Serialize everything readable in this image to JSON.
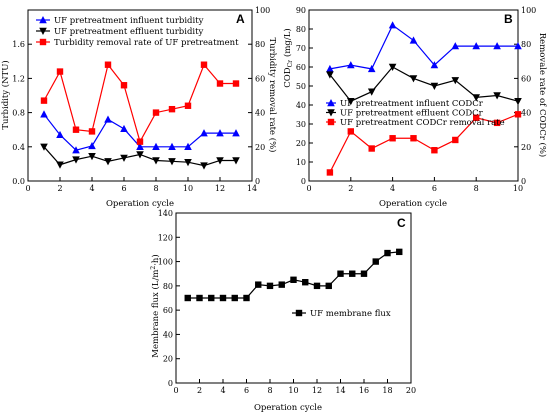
{
  "chart_data": [
    {
      "panel": "A",
      "type": "line",
      "xlabel": "Operation cycle",
      "ylabel": "Turbidity (NTU)",
      "y2label": "Turbidity removal rate (%)",
      "xlim": [
        0,
        14
      ],
      "ylim": [
        0.0,
        2.0
      ],
      "y2lim": [
        0,
        100
      ],
      "xticks": [
        0,
        2,
        4,
        6,
        8,
        10,
        12,
        14
      ],
      "yticks": [
        0.0,
        0.4,
        0.8,
        1.2,
        1.6
      ],
      "y2ticks": [
        0,
        20,
        40,
        60,
        80,
        100
      ],
      "legend_position": "top",
      "series": [
        {
          "name": "UF pretreatment influent turbidity",
          "color": "#0000ff",
          "marker": "triangle-up",
          "axis": "left",
          "x": [
            1,
            2,
            3,
            4,
            5,
            6,
            7,
            8,
            9,
            10,
            11,
            12,
            13
          ],
          "y": [
            0.78,
            0.54,
            0.36,
            0.41,
            0.72,
            0.61,
            0.4,
            0.4,
            0.4,
            0.4,
            0.56,
            0.56,
            0.56
          ]
        },
        {
          "name": "UF pretreatment effluent turbidity",
          "color": "#000000",
          "marker": "triangle-down",
          "axis": "left",
          "x": [
            1,
            2,
            3,
            4,
            5,
            6,
            7,
            8,
            9,
            10,
            11,
            12,
            13
          ],
          "y": [
            0.4,
            0.19,
            0.25,
            0.29,
            0.23,
            0.27,
            0.31,
            0.24,
            0.23,
            0.22,
            0.18,
            0.24,
            0.24
          ]
        },
        {
          "name": "Turbidity removal rate of UF pretreatment",
          "color": "#ff0000",
          "marker": "square",
          "axis": "right",
          "x": [
            1,
            2,
            3,
            4,
            5,
            6,
            7,
            8,
            9,
            10,
            11,
            12,
            13
          ],
          "y": [
            47,
            64,
            30,
            29,
            68,
            56,
            23,
            40,
            42,
            44,
            68,
            57,
            57
          ]
        }
      ]
    },
    {
      "panel": "B",
      "type": "line",
      "xlabel": "Operation cycle",
      "ylabel": "CODCr (mg/L)",
      "ylabel_main": "COD",
      "ylabel_sub": "Cr",
      "ylabel_unit": "(mg/L)",
      "y2label": "Removale rate of CODCr (%)",
      "xlim": [
        0,
        10
      ],
      "ylim": [
        0,
        90
      ],
      "y2lim": [
        0,
        100
      ],
      "xticks": [
        0,
        2,
        4,
        6,
        8,
        10
      ],
      "yticks": [
        0,
        10,
        20,
        30,
        40,
        50,
        60,
        70,
        80,
        90
      ],
      "y2ticks": [
        0,
        20,
        40,
        60,
        80,
        100
      ],
      "legend_position": "center-left",
      "series": [
        {
          "name": "UF pretreatment influent CODCr",
          "color": "#0000ff",
          "marker": "triangle-up",
          "axis": "left",
          "x": [
            1,
            2,
            3,
            4,
            5,
            6,
            7,
            8,
            9,
            10
          ],
          "y": [
            59,
            61,
            59,
            82,
            74,
            61,
            71,
            71,
            71,
            71
          ]
        },
        {
          "name": "UF pretreatment effluent CODCr",
          "color": "#000000",
          "marker": "triangle-down",
          "axis": "left",
          "x": [
            1,
            2,
            3,
            4,
            5,
            6,
            7,
            8,
            9,
            10
          ],
          "y": [
            56,
            42,
            47,
            60,
            54,
            50,
            53,
            44,
            45,
            42
          ]
        },
        {
          "name": "UF pretreatment CODCr removal rate",
          "color": "#ff0000",
          "marker": "square",
          "axis": "right",
          "x": [
            1,
            2,
            3,
            4,
            5,
            6,
            7,
            8,
            9,
            10
          ],
          "y": [
            5,
            29,
            19,
            25,
            25,
            18,
            24,
            37,
            34,
            39
          ]
        }
      ]
    },
    {
      "panel": "C",
      "type": "line",
      "xlabel": "Operation cycle",
      "ylabel": "Membrane flux (L/m²·h)",
      "ylabel_main": "Membrane flux (L/m",
      "ylabel_sup": "2",
      "ylabel_end": "·h)",
      "xlim": [
        0,
        20
      ],
      "ylim": [
        0,
        140
      ],
      "xticks": [
        0,
        2,
        4,
        6,
        8,
        10,
        12,
        14,
        16,
        18,
        20
      ],
      "yticks": [
        0,
        20,
        40,
        60,
        80,
        100,
        120,
        140
      ],
      "legend_position": "center",
      "series": [
        {
          "name": "UF membrane flux",
          "color": "#000000",
          "marker": "square",
          "axis": "left",
          "x": [
            1,
            2,
            3,
            4,
            5,
            6,
            7,
            8,
            9,
            10,
            11,
            12,
            13,
            14,
            15,
            16,
            17,
            18,
            19
          ],
          "y": [
            70,
            70,
            70,
            70,
            70,
            70,
            81,
            80,
            81,
            85,
            83,
            80,
            80,
            90,
            90,
            90,
            100,
            107,
            108
          ]
        }
      ]
    }
  ]
}
